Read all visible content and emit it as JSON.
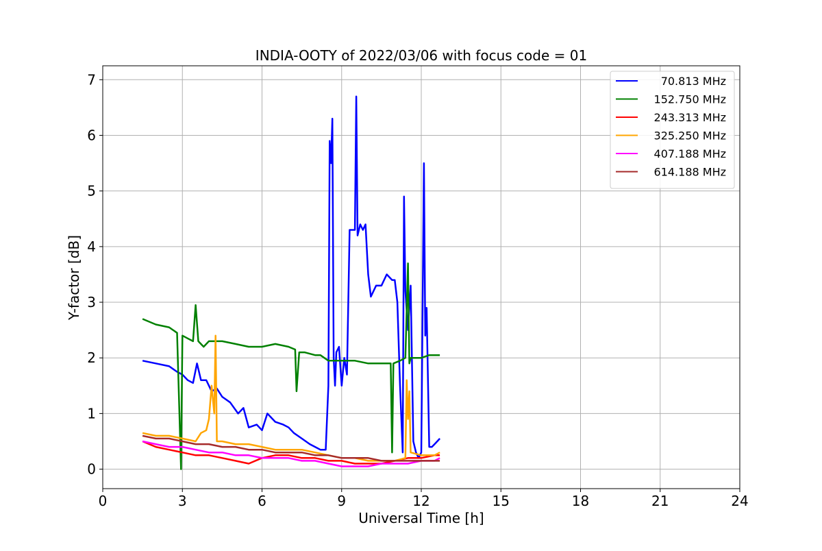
{
  "chart_data": {
    "type": "line",
    "title": "INDIA-OOTY of 2022/03/06 with focus code = 01",
    "xlabel": "Universal Time [h]",
    "ylabel": "Y-factor [dB]",
    "xlim": [
      0,
      24
    ],
    "ylim": [
      -0.35,
      7.25
    ],
    "xticks": [
      0,
      3,
      6,
      9,
      12,
      15,
      18,
      21,
      24
    ],
    "yticks": [
      0,
      1,
      2,
      3,
      4,
      5,
      6,
      7
    ],
    "grid": true,
    "legend_position": "top-right",
    "series": [
      {
        "name": "70.813 MHz",
        "color": "#0000ff",
        "x": [
          1.5,
          2.0,
          2.5,
          2.8,
          3.0,
          3.2,
          3.4,
          3.55,
          3.7,
          3.9,
          4.1,
          4.3,
          4.5,
          4.8,
          5.1,
          5.3,
          5.5,
          5.8,
          6.0,
          6.2,
          6.5,
          6.8,
          7.0,
          7.2,
          7.5,
          7.8,
          8.0,
          8.2,
          8.4,
          8.5,
          8.55,
          8.6,
          8.65,
          8.7,
          8.75,
          8.8,
          8.9,
          9.0,
          9.1,
          9.2,
          9.3,
          9.5,
          9.55,
          9.6,
          9.7,
          9.8,
          9.9,
          10.0,
          10.1,
          10.3,
          10.5,
          10.7,
          10.9,
          11.0,
          11.1,
          11.2,
          11.3,
          11.35,
          11.4,
          11.5,
          11.6,
          11.7,
          11.8,
          11.9,
          12.0,
          12.1,
          12.15,
          12.2,
          12.3,
          12.4,
          12.5,
          12.6,
          12.7
        ],
        "y": [
          1.95,
          1.9,
          1.85,
          1.75,
          1.7,
          1.6,
          1.55,
          1.9,
          1.6,
          1.6,
          1.4,
          1.45,
          1.3,
          1.2,
          1.0,
          1.1,
          0.75,
          0.8,
          0.7,
          1.0,
          0.85,
          0.8,
          0.75,
          0.65,
          0.55,
          0.45,
          0.4,
          0.35,
          0.35,
          1.5,
          5.9,
          5.5,
          6.3,
          2.0,
          1.5,
          2.1,
          2.2,
          1.5,
          2.0,
          1.7,
          4.3,
          4.3,
          6.7,
          4.2,
          4.4,
          4.3,
          4.4,
          3.5,
          3.1,
          3.3,
          3.3,
          3.5,
          3.4,
          3.4,
          3.0,
          1.5,
          0.3,
          4.9,
          3.2,
          2.5,
          3.3,
          0.5,
          0.3,
          0.2,
          0.3,
          5.5,
          2.4,
          2.9,
          0.4,
          0.4,
          0.45,
          0.5,
          0.55
        ]
      },
      {
        "name": "152.750 MHz",
        "color": "#008000",
        "x": [
          1.5,
          2.0,
          2.5,
          2.8,
          2.9,
          2.95,
          3.0,
          3.2,
          3.4,
          3.5,
          3.6,
          3.8,
          4.0,
          4.5,
          5.0,
          5.5,
          6.0,
          6.5,
          7.0,
          7.25,
          7.3,
          7.4,
          7.6,
          8.0,
          8.2,
          8.5,
          9.0,
          9.5,
          10.0,
          10.5,
          10.85,
          10.9,
          10.95,
          11.2,
          11.4,
          11.5,
          11.55,
          11.6,
          12.0,
          12.3,
          12.7
        ],
        "y": [
          2.7,
          2.6,
          2.55,
          2.45,
          0.8,
          0.0,
          2.4,
          2.35,
          2.3,
          2.95,
          2.3,
          2.2,
          2.3,
          2.3,
          2.25,
          2.2,
          2.2,
          2.25,
          2.2,
          2.15,
          1.4,
          2.1,
          2.1,
          2.05,
          2.05,
          1.95,
          1.95,
          1.95,
          1.9,
          1.9,
          1.9,
          0.3,
          1.9,
          1.95,
          2.0,
          3.7,
          1.9,
          2.0,
          2.0,
          2.05,
          2.05
        ]
      },
      {
        "name": "243.313 MHz",
        "color": "#ff0000",
        "x": [
          1.5,
          2.0,
          2.5,
          3.0,
          3.5,
          4.0,
          4.5,
          5.0,
          5.5,
          6.0,
          6.5,
          7.0,
          7.5,
          8.0,
          8.5,
          9.0,
          9.5,
          10.0,
          10.5,
          11.0,
          11.5,
          12.0,
          12.5,
          12.7
        ],
        "y": [
          0.5,
          0.4,
          0.35,
          0.3,
          0.25,
          0.25,
          0.2,
          0.15,
          0.1,
          0.2,
          0.25,
          0.25,
          0.2,
          0.2,
          0.15,
          0.15,
          0.1,
          0.1,
          0.1,
          0.15,
          0.2,
          0.2,
          0.25,
          0.25
        ]
      },
      {
        "name": "325.250 MHz",
        "color": "#ffa500",
        "x": [
          1.5,
          2.0,
          2.5,
          3.0,
          3.5,
          3.7,
          3.9,
          4.0,
          4.1,
          4.2,
          4.25,
          4.3,
          4.5,
          5.0,
          5.5,
          6.0,
          6.5,
          7.0,
          7.5,
          8.0,
          8.5,
          9.0,
          9.5,
          10.0,
          10.5,
          11.0,
          11.4,
          11.45,
          11.5,
          11.55,
          11.6,
          12.0,
          12.5,
          12.7
        ],
        "y": [
          0.65,
          0.6,
          0.6,
          0.55,
          0.5,
          0.65,
          0.7,
          0.9,
          1.5,
          1.0,
          2.4,
          0.5,
          0.5,
          0.45,
          0.45,
          0.4,
          0.35,
          0.35,
          0.35,
          0.3,
          0.25,
          0.2,
          0.2,
          0.15,
          0.15,
          0.15,
          0.2,
          1.6,
          0.9,
          1.4,
          0.3,
          0.25,
          0.25,
          0.3
        ]
      },
      {
        "name": "407.188 MHz",
        "color": "#ff00ff",
        "x": [
          1.5,
          2.0,
          2.5,
          3.0,
          3.5,
          4.0,
          4.5,
          5.0,
          5.5,
          6.0,
          6.5,
          7.0,
          7.5,
          8.0,
          8.5,
          9.0,
          9.5,
          10.0,
          10.5,
          11.0,
          11.5,
          12.0,
          12.5,
          12.7
        ],
        "y": [
          0.5,
          0.45,
          0.4,
          0.4,
          0.35,
          0.3,
          0.3,
          0.25,
          0.25,
          0.2,
          0.2,
          0.2,
          0.15,
          0.15,
          0.1,
          0.05,
          0.05,
          0.05,
          0.1,
          0.1,
          0.1,
          0.15,
          0.15,
          0.2
        ]
      },
      {
        "name": "614.188 MHz",
        "color": "#a52a2a",
        "x": [
          1.5,
          2.0,
          2.5,
          3.0,
          3.5,
          4.0,
          4.5,
          5.0,
          5.5,
          6.0,
          6.5,
          7.0,
          7.5,
          8.0,
          8.5,
          9.0,
          9.5,
          10.0,
          10.5,
          11.0,
          11.5,
          12.0,
          12.5,
          12.7
        ],
        "y": [
          0.6,
          0.55,
          0.55,
          0.5,
          0.45,
          0.45,
          0.4,
          0.4,
          0.35,
          0.35,
          0.3,
          0.3,
          0.3,
          0.25,
          0.25,
          0.2,
          0.2,
          0.2,
          0.15,
          0.15,
          0.15,
          0.15,
          0.15,
          0.15
        ]
      }
    ]
  }
}
